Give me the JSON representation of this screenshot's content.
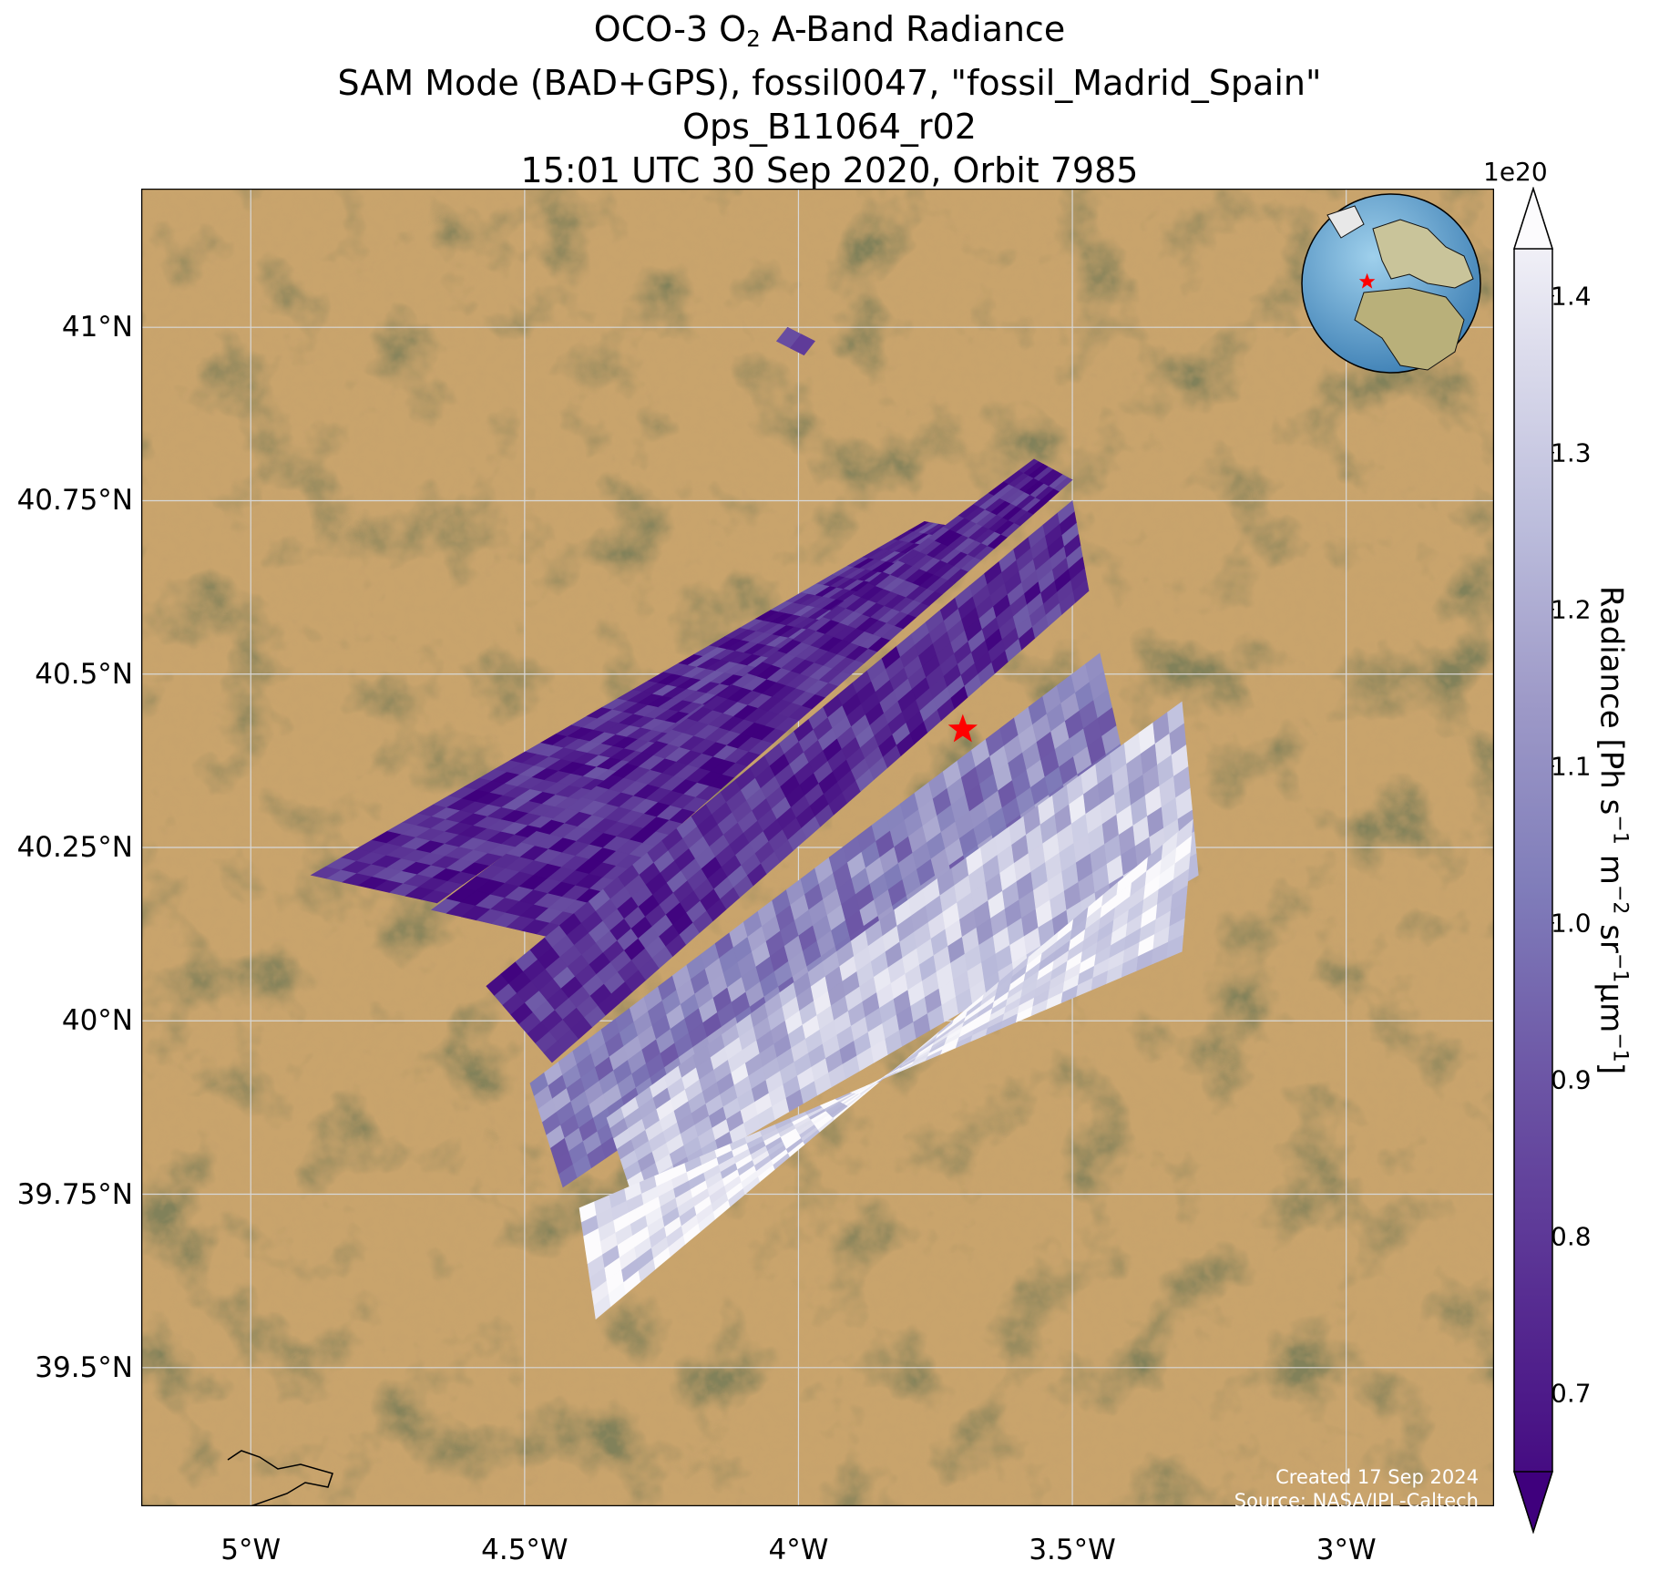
{
  "title": {
    "line1_pre": "OCO-3 O",
    "line1_sub": "2",
    "line1_post": " A-Band Radiance",
    "line2": "SAM Mode (BAD+GPS), fossil0047, \"fossil_Madrid_Spain\"",
    "line3": "Ops_B11064_r02",
    "line4": "15:01 UTC 30 Sep 2020, Orbit 7985"
  },
  "lat_ticks": [
    {
      "label": "41°N",
      "value": 41.0
    },
    {
      "label": "40.75°N",
      "value": 40.75
    },
    {
      "label": "40.5°N",
      "value": 40.5
    },
    {
      "label": "40.25°N",
      "value": 40.25
    },
    {
      "label": "40°N",
      "value": 40.0
    },
    {
      "label": "39.75°N",
      "value": 39.75
    },
    {
      "label": "39.5°N",
      "value": 39.5
    }
  ],
  "lon_ticks": [
    {
      "label": "5°W",
      "value": -5.0
    },
    {
      "label": "4.5°W",
      "value": -4.5
    },
    {
      "label": "4°W",
      "value": -4.0
    },
    {
      "label": "3.5°W",
      "value": -3.5
    },
    {
      "label": "3°W",
      "value": -3.0
    }
  ],
  "extent": {
    "lon": [
      -5.2,
      -2.73
    ],
    "lat": [
      39.3,
      41.2
    ]
  },
  "target_site": {
    "lon": -3.7,
    "lat": 40.42,
    "marker": "red-star",
    "color": "#ff0000"
  },
  "swaths": [
    {
      "corners": [
        [
          -4.89,
          40.21
        ],
        [
          -3.77,
          40.72
        ],
        [
          -3.7,
          40.71
        ],
        [
          -4.66,
          40.17
        ]
      ],
      "mean_radiance": 0.78
    },
    {
      "corners": [
        [
          -4.67,
          40.16
        ],
        [
          -3.57,
          40.81
        ],
        [
          -3.5,
          40.78
        ],
        [
          -4.45,
          40.12
        ]
      ],
      "mean_radiance": 0.76
    },
    {
      "corners": [
        [
          -4.57,
          40.05
        ],
        [
          -3.5,
          40.75
        ],
        [
          -3.47,
          40.62
        ],
        [
          -4.45,
          39.94
        ]
      ],
      "mean_radiance": 0.8
    },
    {
      "corners": [
        [
          -4.49,
          39.91
        ],
        [
          -3.45,
          40.53
        ],
        [
          -3.39,
          40.32
        ],
        [
          -4.43,
          39.76
        ]
      ],
      "mean_radiance": 1.05
    },
    {
      "corners": [
        [
          -4.35,
          39.86
        ],
        [
          -3.3,
          40.46
        ],
        [
          -3.27,
          40.21
        ],
        [
          -4.3,
          39.74
        ]
      ],
      "mean_radiance": 1.25
    },
    {
      "corners": [
        [
          -4.37,
          39.57
        ],
        [
          -3.28,
          40.29
        ],
        [
          -3.3,
          40.1
        ],
        [
          -4.4,
          39.73
        ]
      ],
      "mean_radiance": 1.35
    },
    {
      "corners": [
        [
          -4.02,
          41.0
        ],
        [
          -3.97,
          40.98
        ],
        [
          -3.99,
          40.96
        ],
        [
          -4.04,
          40.98
        ]
      ],
      "mean_radiance": 0.75
    }
  ],
  "credit": {
    "line1": "Created 17 Sep 2024",
    "line2": "Source: NASA/JPL-Caltech"
  },
  "colorbar": {
    "exponent": "1e20",
    "ticks": [
      "1.4",
      "1.3",
      "1.2",
      "1.1",
      "1.0",
      "0.9",
      "0.8",
      "0.7"
    ],
    "tick_values": [
      1.4,
      1.3,
      1.2,
      1.1,
      1.0,
      0.9,
      0.8,
      0.7
    ],
    "range": [
      0.65,
      1.43
    ],
    "label_pre": "Radiance [Ph s",
    "sup1": "−1",
    "mid1": " m",
    "sup2": "−2",
    "mid2": " sr",
    "sup3": "−1",
    "mid3": "μm",
    "sup4": "−1",
    "label_post": "]",
    "colors": {
      "low": "#3f007d",
      "high": "#fcfbfd"
    }
  },
  "colors": {
    "terrain_dry": "#c9a46c",
    "terrain_green": "#5c5a32",
    "grid": "#d8d8d8"
  }
}
